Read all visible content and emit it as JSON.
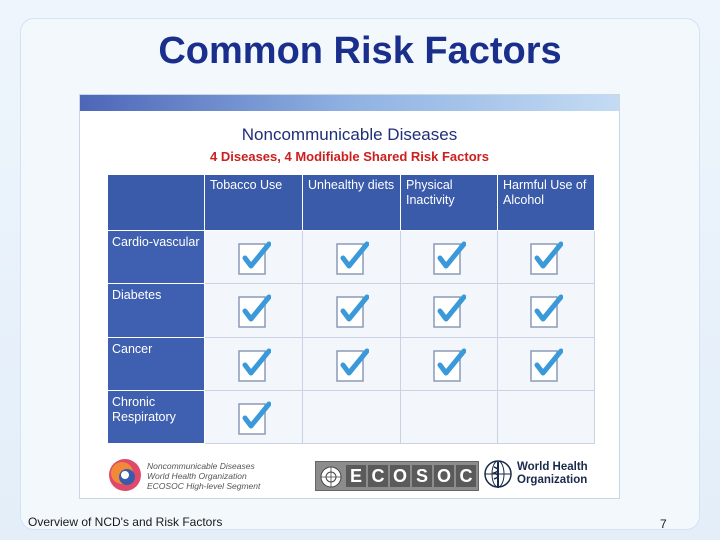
{
  "slide": {
    "title": "Common Risk Factors",
    "footer_text": "Overview of NCD's and Risk Factors",
    "page_number": "7"
  },
  "panel": {
    "title": "Noncommunicable Diseases",
    "subtitle": "4 Diseases, 4 Modifiable Shared Risk Factors",
    "columns": [
      "Tobacco Use",
      "Unhealthy diets",
      "Physical Inactivity",
      "Harmful Use of Alcohol"
    ],
    "rows": [
      {
        "label": "Cardio-vascular",
        "checks": [
          true,
          true,
          true,
          true
        ]
      },
      {
        "label": "Diabetes",
        "checks": [
          true,
          true,
          true,
          true
        ]
      },
      {
        "label": "Cancer",
        "checks": [
          true,
          true,
          true,
          true
        ]
      },
      {
        "label": "Chronic Respiratory",
        "checks": [
          true,
          false,
          false,
          false
        ]
      }
    ],
    "ncd_logo_text": [
      "Noncommunicable Diseases",
      "World Health Organization",
      "ECOSOC High-level Segment"
    ],
    "ecosoc_letters": [
      "E",
      "C",
      "O",
      "S",
      "O",
      "C"
    ],
    "who_text": [
      "World Health",
      "Organization"
    ]
  },
  "colors": {
    "title": "#1a2f8c",
    "header_blue": "#3a5aaa",
    "subtitle_red": "#cc2020",
    "check_blue": "#3a9ad9"
  }
}
